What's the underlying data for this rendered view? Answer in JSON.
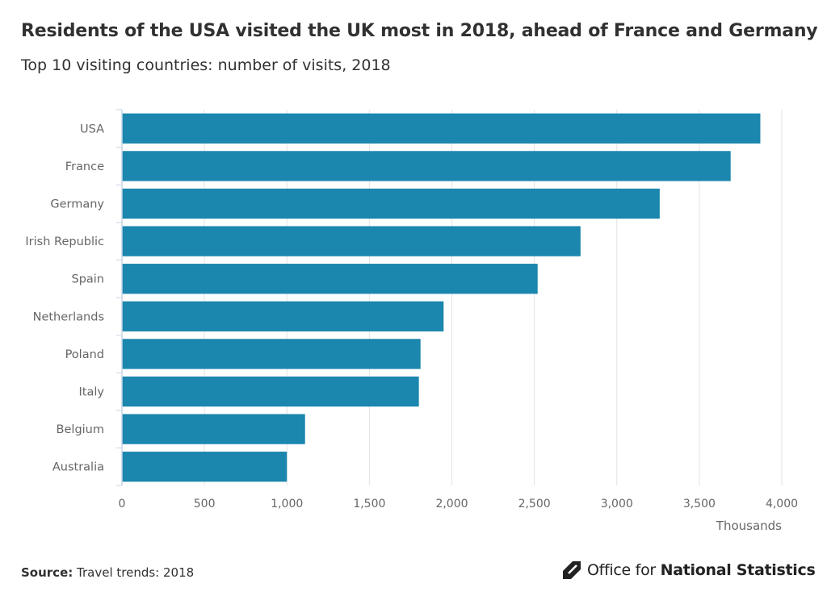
{
  "header": {
    "title": "Residents of the USA visited the UK most in 2018, ahead of France and Germany",
    "subtitle": "Top 10 visiting countries: number of visits, 2018"
  },
  "footer": {
    "source_label": "Source:",
    "source_text": "Travel trends: 2018",
    "logo_regular": "Office for ",
    "logo_bold": "National Statistics"
  },
  "colors": {
    "bar": "#1b86ae",
    "grid": "#e3e3e3",
    "axis": "#c6d6e6",
    "text": "#323132",
    "tick_text": "#666666"
  },
  "chart_data": {
    "type": "bar",
    "orientation": "horizontal",
    "title": "Residents of the USA visited the UK most in 2018, ahead of France and Germany",
    "subtitle": "Top 10 visiting countries: number of visits, 2018",
    "categories": [
      "USA",
      "France",
      "Germany",
      "Irish Republic",
      "Spain",
      "Netherlands",
      "Poland",
      "Italy",
      "Belgium",
      "Australia"
    ],
    "values": [
      3870,
      3690,
      3260,
      2780,
      2520,
      1950,
      1810,
      1800,
      1110,
      1000
    ],
    "xlabel": "Thousands",
    "ylabel": "",
    "xlim": [
      0,
      4000
    ],
    "xticks": [
      0,
      500,
      1000,
      1500,
      2000,
      2500,
      3000,
      3500,
      4000
    ],
    "xtick_labels": [
      "0",
      "500",
      "1,000",
      "1,500",
      "2,000",
      "2,500",
      "3,000",
      "3,500",
      "4,000"
    ],
    "grid": true,
    "legend": "none"
  }
}
